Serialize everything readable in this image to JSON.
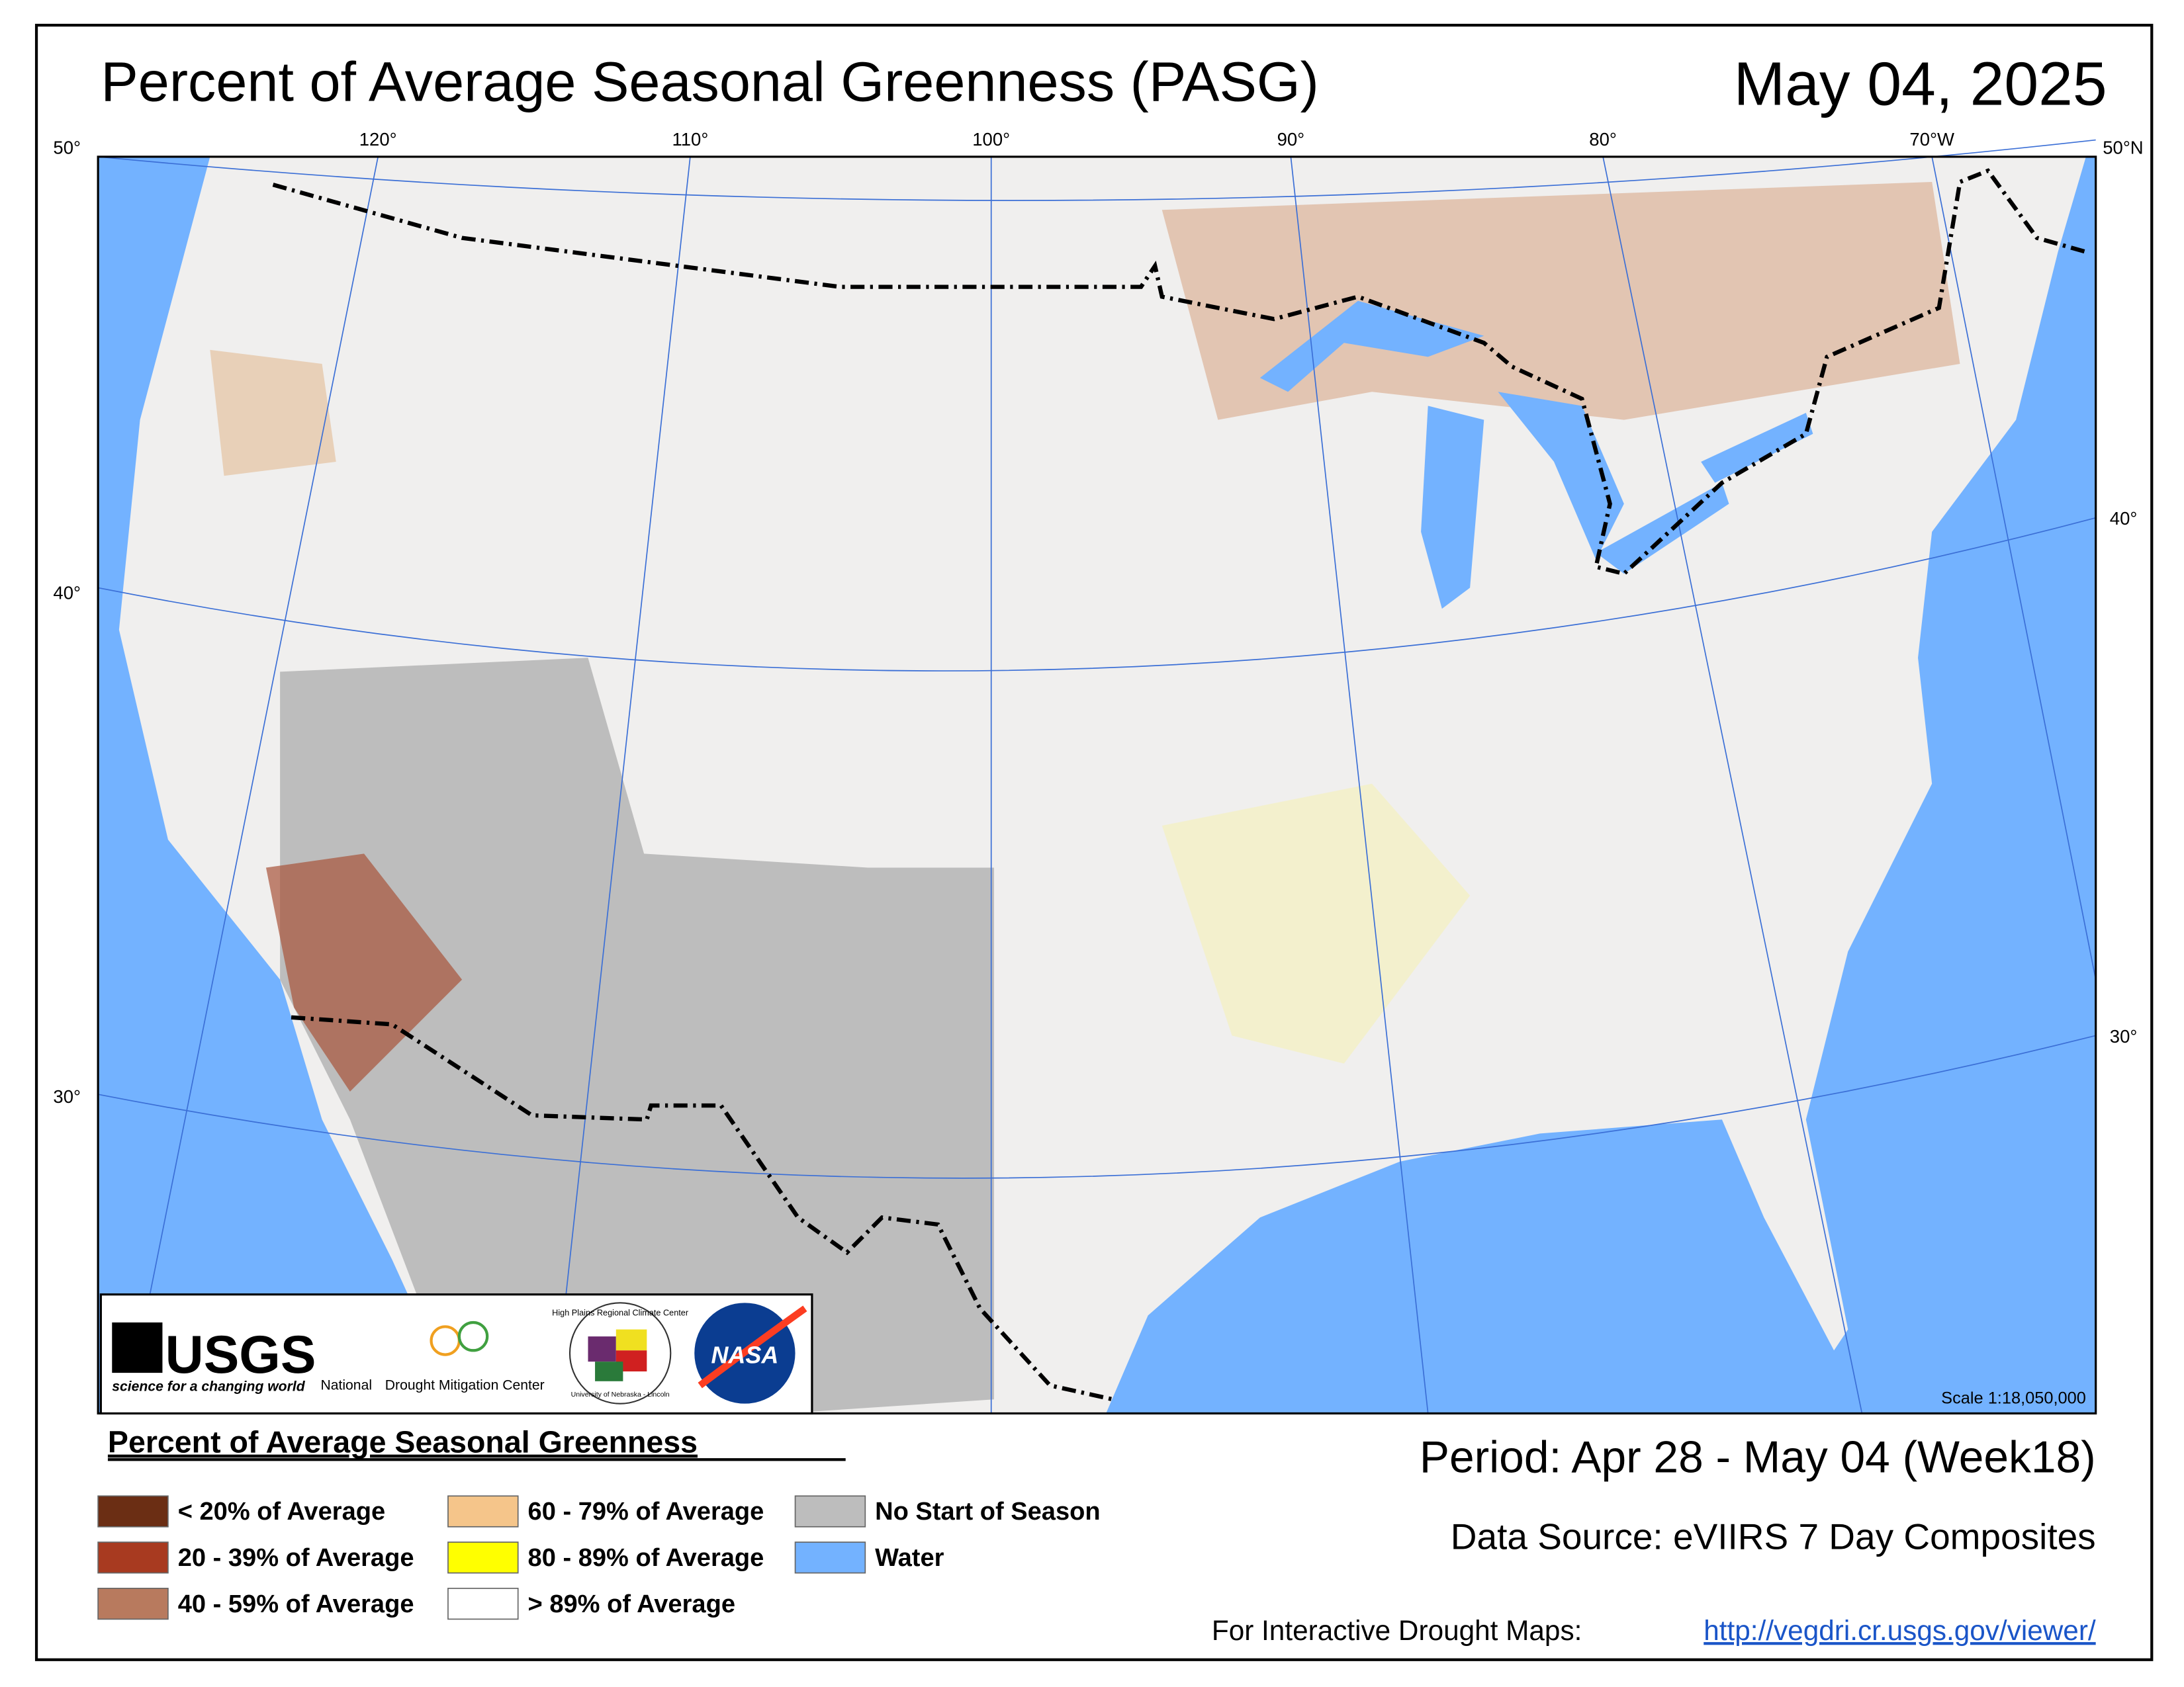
{
  "header": {
    "title": "Percent of Average Seasonal Greenness (PASG)",
    "date": "May 04, 2025"
  },
  "map": {
    "top_labels": [
      "50°",
      "120°",
      "110°",
      "100°",
      "90°",
      "80°",
      "70°W",
      "50°N"
    ],
    "left_labels": [
      "40°",
      "30°"
    ],
    "right_labels": [
      "40°",
      "30°"
    ],
    "scale": "Scale 1:18,050,000"
  },
  "logos": {
    "usgs": "USGS",
    "usgs_tagline": "science for a changing world",
    "ndmc_prefix": "National",
    "ndmc": "Drought Mitigation Center",
    "hprcc": "High Plains Regional Climate Center",
    "unl": "University of Nebraska - Lincoln",
    "nasa": "NASA"
  },
  "legend": {
    "title": "Percent of Average Seasonal Greenness",
    "items": [
      {
        "label": "< 20% of Average",
        "color": "#6b2e14"
      },
      {
        "label": "20 - 39% of Average",
        "color": "#a83a20"
      },
      {
        "label": "40 - 59% of Average",
        "color": "#b87a5e"
      },
      {
        "label": "60 - 79% of Average",
        "color": "#f5c58a"
      },
      {
        "label": "80 - 89% of Average",
        "color": "#ffff00"
      },
      {
        "label": "> 89% of Average",
        "color": "#ffffff"
      },
      {
        "label": "No Start of Season",
        "color": "#bdbdbd"
      },
      {
        "label": "Water",
        "color": "#73b2ff"
      }
    ]
  },
  "footer": {
    "period": "Period:  Apr 28 - May 04 (Week18)",
    "source": "Data Source:  eVIIRS 7 Day Composites",
    "interactive": "For Interactive Drought Maps:",
    "link": "http://vegdri.cr.usgs.gov/viewer/"
  }
}
